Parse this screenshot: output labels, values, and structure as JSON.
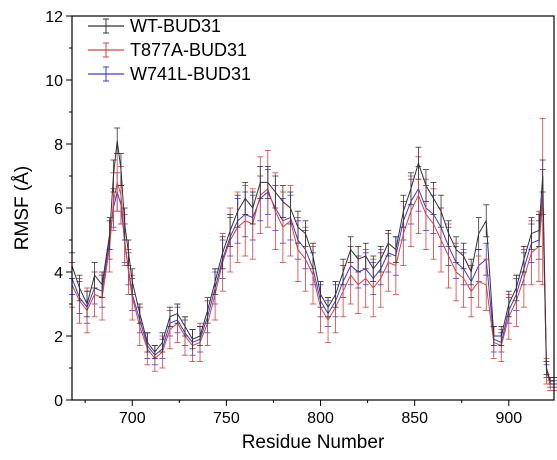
{
  "chart_data": {
    "type": "line",
    "xlabel": "Residue Number",
    "ylabel": "RMSF (Å)",
    "xlim": [
      668,
      924
    ],
    "ylim": [
      0,
      12
    ],
    "xticks": [
      700,
      750,
      800,
      850,
      900
    ],
    "yticks": [
      0,
      2,
      4,
      6,
      8,
      10,
      12
    ],
    "grid": false,
    "legend_position": "top-left",
    "error_bars": true,
    "series": [
      {
        "name": "WT-BUD31",
        "color": "#333333",
        "x": [
          668,
          672,
          676,
          680,
          684,
          688,
          690,
          692,
          694,
          696,
          698,
          700,
          704,
          708,
          712,
          716,
          720,
          724,
          728,
          732,
          736,
          740,
          744,
          748,
          752,
          756,
          760,
          764,
          768,
          772,
          776,
          780,
          784,
          788,
          792,
          796,
          800,
          804,
          808,
          812,
          816,
          820,
          824,
          828,
          832,
          836,
          840,
          844,
          848,
          852,
          856,
          860,
          864,
          868,
          872,
          876,
          880,
          884,
          888,
          892,
          896,
          900,
          904,
          908,
          912,
          916,
          918,
          920,
          922,
          924
        ],
        "values": [
          4.2,
          3.5,
          3.0,
          3.9,
          3.6,
          5.2,
          7.0,
          8.1,
          7.2,
          5.5,
          4.6,
          3.7,
          2.7,
          1.8,
          1.5,
          1.8,
          2.6,
          2.7,
          2.3,
          1.9,
          2.0,
          2.8,
          3.7,
          4.6,
          5.3,
          5.9,
          6.3,
          6.0,
          6.8,
          6.8,
          6.5,
          6.2,
          6.0,
          5.4,
          5.2,
          4.5,
          3.3,
          2.9,
          3.3,
          4.0,
          4.7,
          4.4,
          4.5,
          4.1,
          4.4,
          4.9,
          4.7,
          5.9,
          6.6,
          7.4,
          6.7,
          6.3,
          5.9,
          5.2,
          4.7,
          4.5,
          4.0,
          5.2,
          5.6,
          2.0,
          2.0,
          3.0,
          3.5,
          4.4,
          5.2,
          5.3,
          7.0,
          1.0,
          0.6,
          0.6
        ],
        "errors": [
          0.4,
          0.4,
          0.4,
          0.4,
          0.4,
          0.5,
          0.5,
          0.4,
          0.5,
          0.5,
          0.4,
          0.4,
          0.3,
          0.3,
          0.2,
          0.3,
          0.3,
          0.3,
          0.3,
          0.3,
          0.3,
          0.4,
          0.4,
          0.5,
          0.5,
          0.5,
          0.5,
          0.5,
          0.5,
          0.5,
          0.5,
          0.5,
          0.5,
          0.5,
          0.4,
          0.4,
          0.4,
          0.3,
          0.4,
          0.4,
          0.4,
          0.4,
          0.4,
          0.4,
          0.4,
          0.4,
          0.4,
          0.5,
          0.5,
          0.5,
          0.5,
          0.5,
          0.5,
          0.4,
          0.4,
          0.4,
          0.4,
          0.5,
          0.5,
          0.3,
          0.3,
          0.4,
          0.4,
          0.4,
          0.5,
          0.5,
          0.5,
          0.2,
          0.1,
          0.1
        ]
      },
      {
        "name": "T877A-BUD31",
        "color": "#d94040",
        "x": [
          668,
          672,
          676,
          680,
          684,
          688,
          690,
          692,
          694,
          696,
          698,
          700,
          704,
          708,
          712,
          716,
          720,
          724,
          728,
          732,
          736,
          740,
          744,
          748,
          752,
          756,
          760,
          764,
          768,
          772,
          776,
          780,
          784,
          788,
          792,
          796,
          800,
          804,
          808,
          812,
          816,
          820,
          824,
          828,
          832,
          836,
          840,
          844,
          848,
          852,
          856,
          860,
          864,
          868,
          872,
          876,
          880,
          884,
          888,
          892,
          896,
          900,
          904,
          908,
          912,
          916,
          918,
          920,
          922,
          924
        ],
        "values": [
          3.6,
          3.1,
          2.8,
          3.3,
          3.2,
          4.8,
          6.2,
          6.8,
          6.4,
          5.0,
          4.0,
          3.2,
          2.3,
          1.6,
          1.3,
          1.5,
          2.2,
          2.4,
          2.0,
          1.7,
          1.8,
          2.4,
          3.3,
          4.3,
          5.0,
          5.4,
          5.6,
          5.5,
          6.4,
          6.6,
          5.9,
          5.4,
          5.6,
          4.7,
          4.4,
          3.9,
          2.9,
          2.5,
          2.9,
          3.4,
          3.9,
          3.6,
          3.8,
          3.5,
          3.8,
          4.3,
          4.2,
          5.2,
          5.9,
          6.4,
          5.8,
          5.5,
          5.0,
          4.5,
          4.0,
          3.8,
          3.4,
          3.7,
          3.6,
          1.8,
          1.7,
          2.6,
          3.1,
          3.8,
          4.6,
          4.8,
          6.2,
          0.9,
          0.5,
          0.5
        ],
        "errors": [
          0.7,
          0.7,
          0.7,
          0.7,
          0.7,
          0.8,
          0.9,
          0.9,
          0.9,
          0.8,
          0.7,
          0.7,
          0.6,
          0.5,
          0.4,
          0.5,
          0.6,
          0.6,
          0.6,
          0.5,
          0.6,
          0.7,
          0.8,
          0.9,
          1.0,
          1.1,
          1.1,
          1.1,
          1.2,
          1.2,
          1.2,
          1.1,
          1.1,
          1.0,
          1.0,
          0.9,
          0.8,
          0.7,
          0.8,
          0.8,
          0.9,
          0.9,
          0.9,
          0.9,
          0.9,
          0.9,
          0.9,
          1.0,
          1.1,
          1.2,
          1.1,
          1.1,
          1.0,
          1.0,
          0.9,
          0.9,
          0.8,
          0.8,
          0.8,
          0.5,
          0.5,
          0.7,
          0.8,
          0.9,
          1.0,
          1.1,
          2.6,
          0.4,
          0.2,
          0.2
        ]
      },
      {
        "name": "W741L-BUD31",
        "color": "#3a3adf",
        "x": [
          668,
          672,
          676,
          680,
          684,
          688,
          690,
          692,
          694,
          696,
          698,
          700,
          704,
          708,
          712,
          716,
          720,
          724,
          728,
          732,
          736,
          740,
          744,
          748,
          752,
          756,
          760,
          764,
          768,
          772,
          776,
          780,
          784,
          788,
          792,
          796,
          800,
          804,
          808,
          812,
          816,
          820,
          824,
          828,
          832,
          836,
          840,
          844,
          848,
          852,
          856,
          860,
          864,
          868,
          872,
          876,
          880,
          884,
          888,
          892,
          896,
          900,
          904,
          908,
          912,
          916,
          918,
          920,
          922,
          924
        ],
        "values": [
          3.8,
          3.2,
          2.9,
          3.5,
          3.4,
          5.0,
          6.0,
          6.5,
          6.1,
          4.9,
          4.1,
          3.3,
          2.5,
          1.7,
          1.4,
          1.6,
          2.4,
          2.5,
          2.1,
          1.8,
          1.9,
          2.6,
          3.5,
          4.4,
          5.1,
          5.6,
          5.8,
          5.7,
          6.3,
          6.5,
          6.0,
          5.6,
          5.7,
          5.0,
          4.7,
          4.1,
          3.1,
          2.7,
          3.1,
          3.7,
          4.2,
          4.0,
          4.1,
          3.8,
          4.1,
          4.6,
          4.5,
          5.6,
          6.2,
          6.6,
          6.0,
          5.8,
          5.4,
          4.8,
          4.3,
          4.1,
          3.7,
          4.2,
          4.4,
          1.9,
          1.8,
          2.8,
          3.3,
          4.1,
          4.9,
          5.0,
          6.5,
          0.9,
          0.5,
          0.5
        ],
        "errors": [
          0.5,
          0.5,
          0.5,
          0.5,
          0.5,
          0.6,
          0.6,
          0.6,
          0.6,
          0.6,
          0.5,
          0.5,
          0.4,
          0.4,
          0.3,
          0.3,
          0.4,
          0.4,
          0.4,
          0.4,
          0.4,
          0.5,
          0.5,
          0.6,
          0.6,
          0.7,
          0.7,
          0.7,
          0.7,
          0.7,
          0.7,
          0.7,
          0.7,
          0.6,
          0.6,
          0.5,
          0.5,
          0.4,
          0.5,
          0.5,
          0.6,
          0.5,
          0.5,
          0.5,
          0.5,
          0.6,
          0.6,
          0.6,
          0.7,
          0.7,
          0.7,
          0.6,
          0.6,
          0.6,
          0.5,
          0.5,
          0.5,
          0.5,
          0.5,
          0.4,
          0.3,
          0.4,
          0.5,
          0.5,
          0.6,
          0.6,
          0.7,
          0.2,
          0.1,
          0.1
        ]
      }
    ]
  }
}
